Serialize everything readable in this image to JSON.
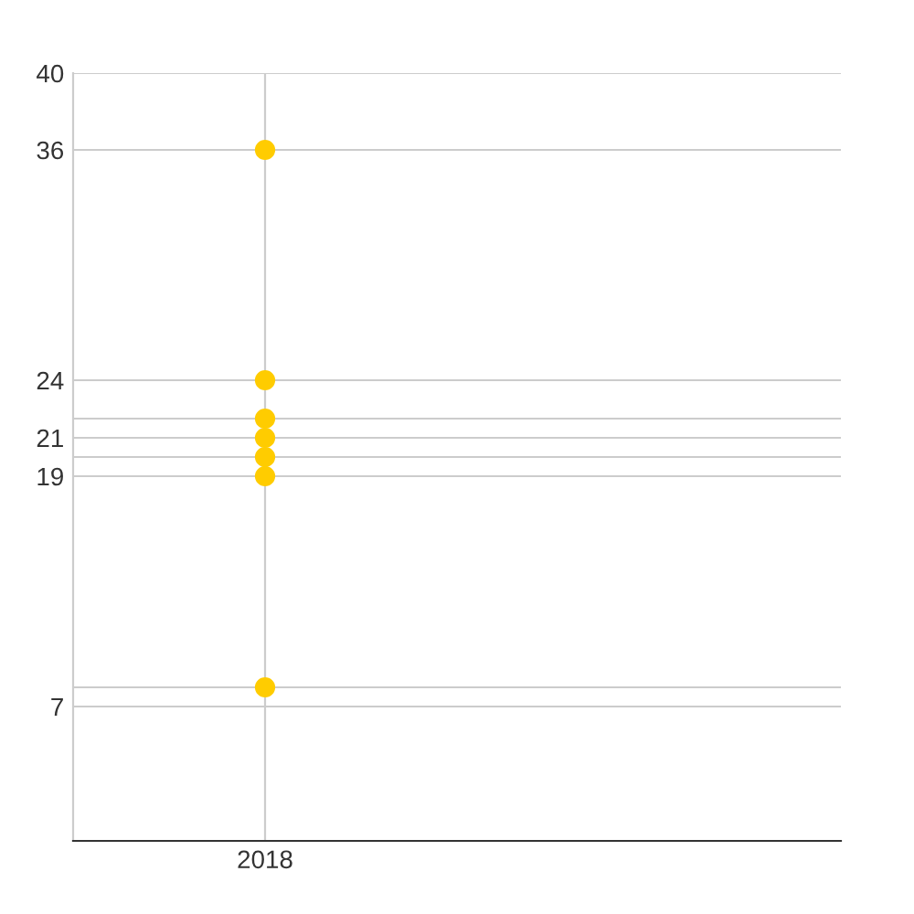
{
  "chart_data": {
    "type": "scatter",
    "categories": [
      "2018",
      null
    ],
    "series": [
      {
        "color": "#ffcc00",
        "values": [
          36,
          null
        ]
      },
      {
        "color": "#ffcc00",
        "values": [
          24,
          null
        ]
      },
      {
        "color": "#ffcc00",
        "values": [
          22,
          null
        ]
      },
      {
        "color": "#ffcc00",
        "values": [
          21,
          null
        ]
      },
      {
        "color": "#ffcc00",
        "values": [
          20,
          null
        ]
      },
      {
        "color": "#ffcc00",
        "values": [
          19,
          null
        ]
      },
      {
        "color": "#ffcc00",
        "values": [
          8,
          null
        ]
      }
    ],
    "marker": "circle",
    "ylim": [
      0,
      40
    ],
    "yticks": [
      7,
      {
        "value": 8,
        "label": null
      },
      19,
      {
        "value": 20,
        "label": null
      },
      21,
      {
        "value": 22,
        "label": null
      },
      24,
      36,
      40
    ],
    "grid": true
  }
}
